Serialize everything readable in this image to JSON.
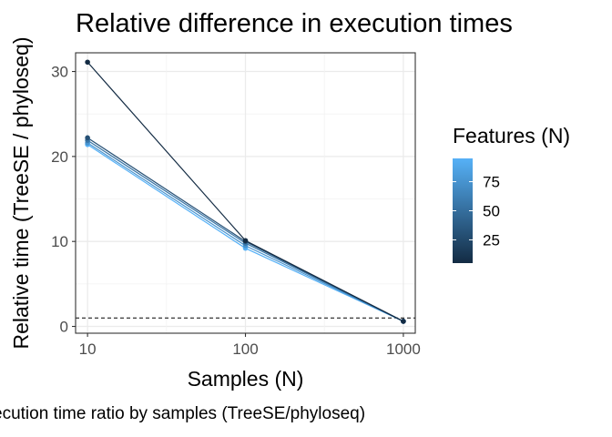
{
  "caption": "ecution time ratio by samples (TreeSE/phyloseq)",
  "chart_data": {
    "type": "line",
    "title": "Relative difference in execution times",
    "xlabel": "Samples (N)",
    "ylabel": "Relative time (TreeSE / phyloseq)",
    "x_scale": "log10",
    "x": [
      10,
      100,
      1000
    ],
    "xticks": [
      "10",
      "100",
      "1000"
    ],
    "yticks": [
      0,
      10,
      20,
      30
    ],
    "ylim": [
      -0.8,
      32.2
    ],
    "xlim": [
      8.4,
      1190
    ],
    "reference_line": {
      "y": 1,
      "style": "dashed"
    },
    "grid": true,
    "legend": {
      "title": "Features (N)",
      "type": "colorbar",
      "ticks": [
        25,
        50,
        75
      ],
      "range": [
        5,
        95
      ],
      "low_color": "#132B43",
      "high_color": "#56B1F7",
      "placement": "right"
    },
    "series": [
      {
        "features": 5,
        "values": [
          31.1,
          10.1,
          0.6
        ]
      },
      {
        "features": 30,
        "values": [
          22.2,
          10.0,
          0.6
        ]
      },
      {
        "features": 55,
        "values": [
          21.9,
          9.8,
          0.6
        ]
      },
      {
        "features": 75,
        "values": [
          21.6,
          9.5,
          0.6
        ]
      },
      {
        "features": 95,
        "values": [
          21.4,
          9.2,
          0.6
        ]
      }
    ]
  }
}
